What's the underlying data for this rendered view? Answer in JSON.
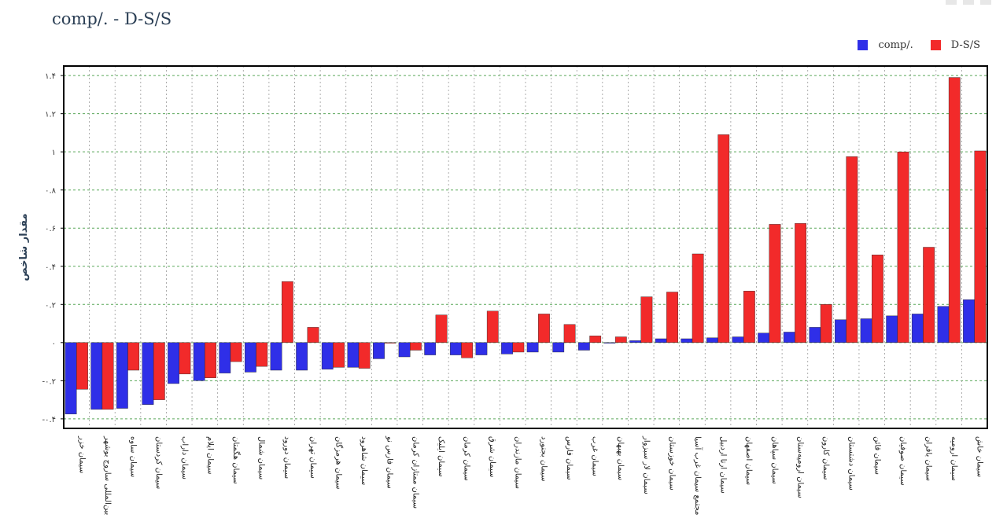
{
  "title": "comp/. - D-S/S",
  "legend": [
    {
      "label": "comp/.",
      "color": "#2f2fe8"
    },
    {
      "label": "D-S/S",
      "color": "#f22a2a"
    }
  ],
  "chart_data": {
    "type": "bar",
    "title": "comp/. - D-S/S",
    "ylabel": "مقدار شاخص",
    "xlabel": "",
    "ylim": [
      -0.45,
      1.45
    ],
    "yticks": [
      -0.4,
      -0.2,
      0,
      0.2,
      0.4,
      0.6,
      0.8,
      1,
      1.2,
      1.4
    ],
    "ytick_labels": [
      "-۰.۴",
      "-۰.۲",
      "۰",
      "۰.۲",
      "۰.۴",
      "۰.۶",
      "۰.۸",
      "۱",
      "۱.۲",
      "۱.۴"
    ],
    "grid": true,
    "legend_position": "top-right",
    "categories": [
      "سیمان خزر",
      "بین‌المللی ساروج بوشهر",
      "سیمان ساوه",
      "سیمان کردستان",
      "سیمان داراب",
      "سیمان ایلام",
      "سیمان هگمتان",
      "سیمان شمال",
      "سیمان دورود",
      "سیمان تهران",
      "سیمان هرمزگان",
      "سیمان شاهرود",
      "سیمان فارس نو",
      "سیمان ممتازان کرمان",
      "سیمان ایلیک",
      "سیمان کرمان",
      "سیمان شرق",
      "سیمان مازندران",
      "سیمان بجنورد",
      "سیمان فارس",
      "سیمان غرب",
      "سیمان بهبهان",
      "سیمان لار سبزوار",
      "سیمان خوزستان",
      "مجتمع سیمان غرب آسیا",
      "سیمان ارتا اردبیل",
      "سیمان اصفهان",
      "سیمان سپاهان",
      "سیمان ارومیه‌ستان",
      "سیمان کارون",
      "سیمان دشتستان",
      "سیمان قائن",
      "سیمان صوفیان",
      "سیمان باقران",
      "سیمان ارومیه",
      "سیمان خاش"
    ],
    "series": [
      {
        "name": "comp/.",
        "color": "#2f2fe8",
        "values": [
          -0.375,
          -0.35,
          -0.345,
          -0.325,
          -0.215,
          -0.2,
          -0.16,
          -0.155,
          -0.145,
          -0.145,
          -0.14,
          -0.13,
          -0.085,
          -0.075,
          -0.065,
          -0.065,
          -0.065,
          -0.06,
          -0.05,
          -0.05,
          -0.04,
          0.0,
          0.01,
          0.02,
          0.02,
          0.025,
          0.03,
          0.05,
          0.055,
          0.08,
          0.12,
          0.125,
          0.14,
          0.15,
          0.19,
          0.225
        ]
      },
      {
        "name": "D-S/S",
        "color": "#f22a2a",
        "values": [
          -0.245,
          -0.35,
          -0.145,
          -0.3,
          -0.165,
          -0.185,
          -0.1,
          -0.125,
          0.32,
          0.08,
          -0.13,
          -0.135,
          0.0,
          -0.04,
          0.145,
          -0.08,
          0.165,
          -0.05,
          0.15,
          0.095,
          0.035,
          0.03,
          0.24,
          0.265,
          0.465,
          1.09,
          0.27,
          0.62,
          0.625,
          0.2,
          0.975,
          0.46,
          1.0,
          0.5,
          1.39,
          1.005
        ]
      }
    ]
  }
}
